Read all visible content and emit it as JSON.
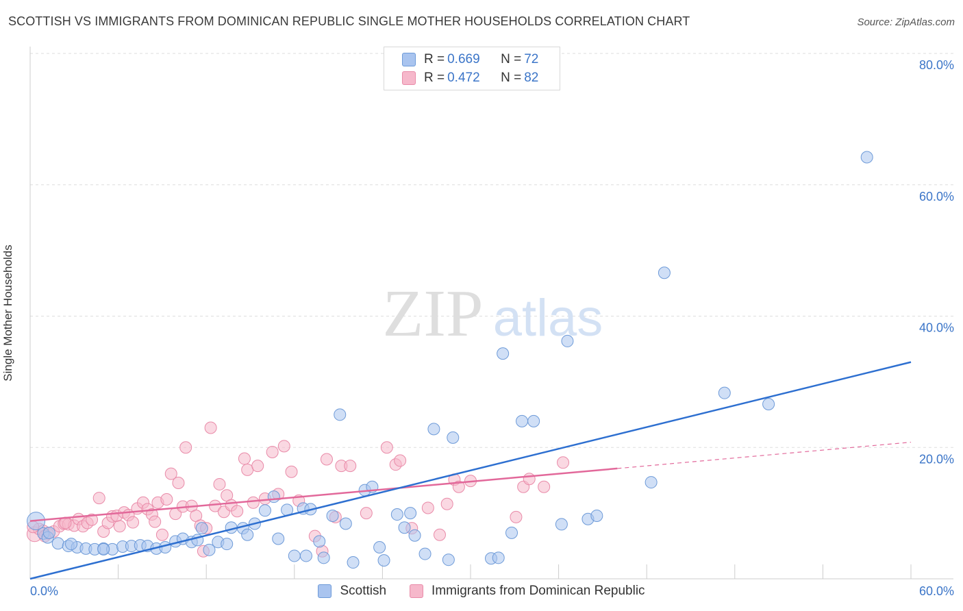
{
  "header": {
    "title": "SCOTTISH VS IMMIGRANTS FROM DOMINICAN REPUBLIC SINGLE MOTHER HOUSEHOLDS CORRELATION CHART",
    "source": "Source: ZipAtlas.com"
  },
  "watermark": {
    "zip": "ZIP",
    "atlas": "atlas"
  },
  "legend": {
    "rows": [
      {
        "r_label": "R =",
        "r_value": "0.669",
        "n_label": "N =",
        "n_value": "72",
        "color": "#a9c4ef"
      },
      {
        "r_label": "R =",
        "r_value": "0.472",
        "n_label": "N =",
        "n_value": "82",
        "color": "#f6b8cb"
      }
    ]
  },
  "bottom_legend": {
    "items": [
      {
        "label": "Scottish",
        "color": "#a9c4ef"
      },
      {
        "label": "Immigrants from Dominican Republic",
        "color": "#f6b8cb"
      }
    ]
  },
  "colors": {
    "blue_fill": "#a9c4ef",
    "blue_stroke": "#6d9ad8",
    "blue_line": "#2d6fd0",
    "pink_fill": "#f6b8cb",
    "pink_stroke": "#e98aa8",
    "pink_line": "#e2689a",
    "grid": "#dddddd",
    "tick_text": "#3b75c8"
  },
  "chart_data": {
    "type": "scatter",
    "title": "SCOTTISH VS IMMIGRANTS FROM DOMINICAN REPUBLIC SINGLE MOTHER HOUSEHOLDS CORRELATION CHART",
    "xlabel": "",
    "ylabel": "Single Mother Households",
    "xlim": [
      0,
      60
    ],
    "ylim": [
      0,
      80
    ],
    "x_tick_labels": [
      "0.0%",
      "60.0%"
    ],
    "y_tick_labels": [
      "20.0%",
      "40.0%",
      "60.0%",
      "80.0%"
    ],
    "y_ticks": [
      20,
      40,
      60,
      80
    ],
    "grid": true,
    "legend_position": "top-center",
    "series": [
      {
        "name": "Scottish",
        "R": 0.669,
        "N": 72,
        "trend": [
          [
            0,
            0.0
          ],
          [
            60,
            33.0
          ]
        ],
        "points": [
          [
            0.4,
            8.8
          ],
          [
            0.9,
            6.9
          ],
          [
            1.2,
            6.3
          ],
          [
            1.9,
            5.4
          ],
          [
            2.6,
            5.0
          ],
          [
            3.2,
            4.8
          ],
          [
            3.8,
            4.6
          ],
          [
            4.4,
            4.5
          ],
          [
            5.0,
            4.6
          ],
          [
            5.6,
            4.5
          ],
          [
            6.3,
            4.9
          ],
          [
            6.9,
            5.0
          ],
          [
            7.5,
            5.1
          ],
          [
            8.0,
            5.0
          ],
          [
            8.6,
            4.6
          ],
          [
            9.2,
            4.8
          ],
          [
            9.9,
            5.7
          ],
          [
            10.4,
            6.1
          ],
          [
            11.0,
            5.6
          ],
          [
            11.4,
            5.9
          ],
          [
            11.7,
            7.7
          ],
          [
            12.2,
            4.4
          ],
          [
            12.8,
            5.6
          ],
          [
            13.4,
            5.3
          ],
          [
            13.7,
            7.8
          ],
          [
            14.5,
            7.7
          ],
          [
            14.8,
            6.7
          ],
          [
            15.3,
            8.4
          ],
          [
            16.0,
            10.4
          ],
          [
            16.6,
            12.5
          ],
          [
            16.9,
            6.1
          ],
          [
            17.5,
            10.5
          ],
          [
            18.0,
            3.5
          ],
          [
            18.6,
            10.7
          ],
          [
            18.8,
            3.5
          ],
          [
            19.1,
            10.6
          ],
          [
            19.7,
            5.7
          ],
          [
            20.0,
            3.2
          ],
          [
            20.6,
            9.6
          ],
          [
            21.1,
            25.0
          ],
          [
            21.5,
            8.4
          ],
          [
            22.0,
            2.5
          ],
          [
            22.8,
            13.5
          ],
          [
            23.3,
            14.0
          ],
          [
            23.8,
            4.8
          ],
          [
            24.1,
            2.8
          ],
          [
            25.0,
            9.8
          ],
          [
            25.5,
            7.8
          ],
          [
            25.9,
            10.0
          ],
          [
            26.2,
            6.6
          ],
          [
            26.9,
            3.8
          ],
          [
            27.5,
            22.8
          ],
          [
            28.5,
            2.9
          ],
          [
            28.8,
            21.5
          ],
          [
            31.4,
            3.1
          ],
          [
            31.9,
            3.2
          ],
          [
            32.2,
            34.3
          ],
          [
            32.8,
            7.0
          ],
          [
            33.5,
            24.0
          ],
          [
            34.3,
            24.0
          ],
          [
            36.2,
            8.3
          ],
          [
            36.6,
            36.2
          ],
          [
            38.0,
            9.1
          ],
          [
            38.6,
            9.6
          ],
          [
            42.3,
            14.7
          ],
          [
            43.2,
            46.6
          ],
          [
            47.3,
            28.3
          ],
          [
            50.3,
            26.6
          ],
          [
            57.0,
            64.2
          ],
          [
            1.3,
            7.0
          ],
          [
            2.8,
            5.3
          ],
          [
            5.0,
            4.5
          ]
        ]
      },
      {
        "name": "Immigrants from Dominican Republic",
        "R": 0.472,
        "N": 82,
        "trend": [
          [
            0,
            8.8
          ],
          [
            40,
            16.8
          ]
        ],
        "trend_dashed": [
          [
            40,
            16.8
          ],
          [
            60,
            20.8
          ]
        ],
        "points": [
          [
            0.3,
            6.8
          ],
          [
            0.6,
            7.6
          ],
          [
            0.9,
            7.3
          ],
          [
            1.2,
            6.9
          ],
          [
            1.6,
            7.2
          ],
          [
            2.0,
            8.0
          ],
          [
            2.3,
            8.4
          ],
          [
            2.6,
            8.3
          ],
          [
            3.0,
            8.1
          ],
          [
            3.3,
            9.1
          ],
          [
            3.6,
            8.0
          ],
          [
            3.9,
            8.5
          ],
          [
            4.2,
            9.0
          ],
          [
            4.7,
            12.3
          ],
          [
            5.0,
            7.2
          ],
          [
            5.3,
            8.5
          ],
          [
            5.6,
            9.5
          ],
          [
            5.9,
            9.6
          ],
          [
            6.1,
            8.0
          ],
          [
            6.4,
            10.1
          ],
          [
            6.7,
            9.7
          ],
          [
            7.0,
            8.6
          ],
          [
            7.3,
            10.7
          ],
          [
            7.7,
            11.6
          ],
          [
            8.0,
            10.6
          ],
          [
            8.3,
            9.8
          ],
          [
            8.5,
            8.7
          ],
          [
            8.7,
            11.6
          ],
          [
            9.0,
            6.7
          ],
          [
            9.3,
            12.1
          ],
          [
            9.6,
            16.0
          ],
          [
            9.9,
            9.9
          ],
          [
            10.1,
            14.6
          ],
          [
            10.4,
            11.0
          ],
          [
            10.6,
            20.0
          ],
          [
            11.0,
            11.1
          ],
          [
            11.3,
            9.6
          ],
          [
            11.6,
            8.1
          ],
          [
            11.8,
            4.2
          ],
          [
            12.0,
            7.7
          ],
          [
            12.3,
            23.0
          ],
          [
            12.6,
            11.1
          ],
          [
            12.9,
            14.4
          ],
          [
            13.2,
            10.2
          ],
          [
            13.4,
            12.7
          ],
          [
            13.7,
            11.2
          ],
          [
            14.1,
            10.3
          ],
          [
            14.6,
            18.3
          ],
          [
            14.8,
            16.6
          ],
          [
            15.2,
            11.6
          ],
          [
            15.5,
            17.2
          ],
          [
            16.0,
            12.2
          ],
          [
            16.5,
            19.3
          ],
          [
            16.9,
            12.9
          ],
          [
            17.3,
            20.2
          ],
          [
            17.8,
            16.3
          ],
          [
            18.3,
            11.9
          ],
          [
            19.4,
            6.5
          ],
          [
            19.9,
            4.2
          ],
          [
            20.2,
            18.2
          ],
          [
            20.8,
            9.4
          ],
          [
            21.2,
            17.2
          ],
          [
            21.8,
            17.2
          ],
          [
            22.9,
            10.0
          ],
          [
            24.3,
            20.0
          ],
          [
            24.9,
            17.4
          ],
          [
            25.2,
            18.0
          ],
          [
            26.0,
            7.7
          ],
          [
            27.1,
            10.8
          ],
          [
            27.9,
            6.7
          ],
          [
            28.4,
            11.4
          ],
          [
            28.9,
            15.1
          ],
          [
            29.2,
            14.0
          ],
          [
            30.0,
            14.9
          ],
          [
            33.1,
            9.4
          ],
          [
            33.6,
            14.0
          ],
          [
            34.0,
            15.2
          ],
          [
            35.0,
            14.0
          ],
          [
            36.3,
            17.7
          ],
          [
            1.0,
            6.5
          ],
          [
            0.2,
            7.9
          ],
          [
            2.4,
            8.5
          ]
        ]
      }
    ]
  }
}
